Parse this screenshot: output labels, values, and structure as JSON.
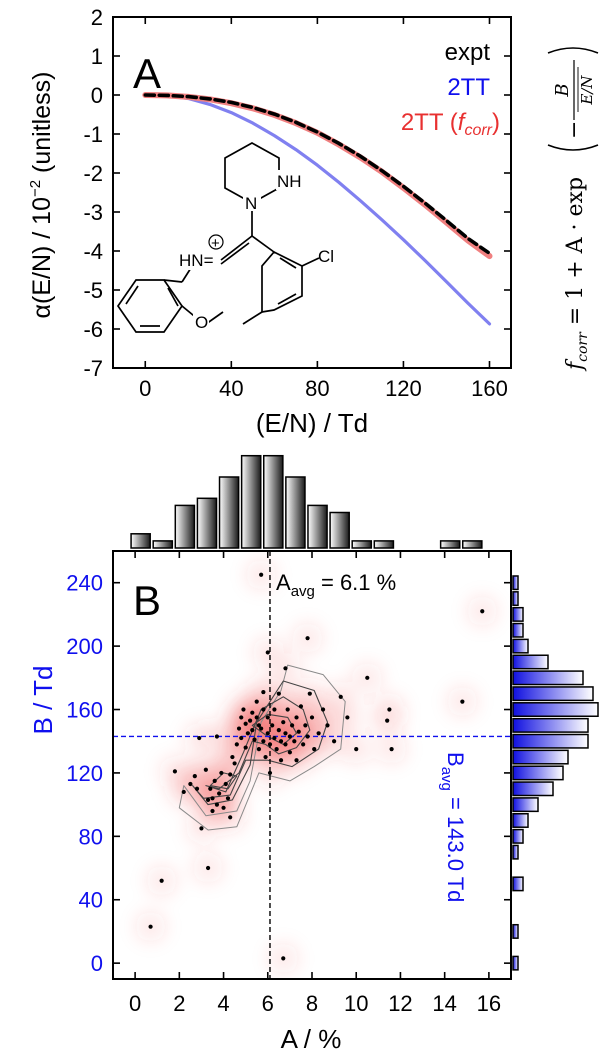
{
  "colors": {
    "expt": "#000000",
    "tt2": "#8080f0",
    "tt2corr": "#f08080",
    "blue_text": "#1010ee",
    "density": "#f03c3c"
  },
  "panelA": {
    "letter": "A",
    "xlabel": "(E/N) / Td",
    "ylabel": "α(E/N) / 10",
    "ylabel_exp": "−2",
    "ylabel_tail": " (unitless)",
    "legend": {
      "expt": "expt",
      "tt2": "2TT",
      "tt2corr_prefix": "2TT (",
      "tt2corr_f": "f",
      "tt2corr_sub": "corr",
      "tt2corr_suffix": ")"
    },
    "formula": {
      "lhs_f": "f",
      "lhs_sub": "corr",
      "rhs": " = 1 + A · exp",
      "numerator": "B",
      "denominator": "E/N",
      "minus": "−"
    },
    "molecule_labels": {
      "nh_top": "NH",
      "hn": "HN",
      "charge": "+",
      "cl": "Cl",
      "o": "O"
    }
  },
  "panelB": {
    "letter": "B",
    "xlabel": "A / %",
    "ylabel": "B / Td",
    "a_avg_prefix": "A",
    "a_avg_sub": "avg",
    "a_avg_value": " = 6.1 %",
    "b_avg_prefix": "B",
    "b_avg_sub": "avg",
    "b_avg_value": " = 143.0 Td"
  },
  "chart_data": [
    {
      "type": "line",
      "panel": "A",
      "xlim": [
        -15,
        170
      ],
      "ylim": [
        -7,
        2
      ],
      "xticks": [
        0,
        40,
        80,
        120,
        160
      ],
      "yticks": [
        2,
        1,
        0,
        -1,
        -2,
        -3,
        -4,
        -5,
        -6,
        -7
      ],
      "x": [
        0,
        10,
        20,
        30,
        40,
        50,
        60,
        70,
        80,
        90,
        100,
        110,
        120,
        130,
        140,
        150,
        160
      ],
      "series": [
        {
          "name": "expt",
          "style": "dashed",
          "values": [
            0,
            -0.01,
            -0.04,
            -0.1,
            -0.19,
            -0.32,
            -0.49,
            -0.7,
            -0.95,
            -1.24,
            -1.57,
            -1.94,
            -2.34,
            -2.77,
            -3.22,
            -3.68,
            -4.06
          ]
        },
        {
          "name": "2TT",
          "style": "solid",
          "values": [
            0,
            -0.02,
            -0.09,
            -0.24,
            -0.45,
            -0.72,
            -1.04,
            -1.4,
            -1.8,
            -2.24,
            -2.71,
            -3.2,
            -3.71,
            -4.24,
            -4.79,
            -5.34,
            -5.87
          ]
        },
        {
          "name": "2TT (fcorr)",
          "style": "solid",
          "values": [
            0,
            -0.01,
            -0.05,
            -0.11,
            -0.21,
            -0.34,
            -0.51,
            -0.72,
            -0.97,
            -1.27,
            -1.6,
            -1.97,
            -2.38,
            -2.81,
            -3.27,
            -3.73,
            -4.13
          ]
        }
      ]
    },
    {
      "type": "scatter",
      "panel": "B",
      "xlim": [
        -1,
        17
      ],
      "ylim": [
        -10,
        260
      ],
      "xticks": [
        0,
        2,
        4,
        6,
        8,
        10,
        12,
        14,
        16
      ],
      "yticks": [
        0,
        40,
        80,
        120,
        160,
        200,
        240
      ],
      "a_avg": 6.1,
      "b_avg": 143.0,
      "points": [
        [
          0.7,
          23
        ],
        [
          1.2,
          52
        ],
        [
          1.8,
          121
        ],
        [
          2.2,
          108
        ],
        [
          2.5,
          113
        ],
        [
          2.7,
          118
        ],
        [
          2.9,
          142
        ],
        [
          3.0,
          85
        ],
        [
          3.2,
          122
        ],
        [
          3.3,
          103
        ],
        [
          3.4,
          110
        ],
        [
          3.5,
          104
        ],
        [
          3.5,
          96
        ],
        [
          3.6,
          115
        ],
        [
          3.7,
          100
        ],
        [
          3.8,
          107
        ],
        [
          3.9,
          120
        ],
        [
          4.0,
          98
        ],
        [
          4.1,
          113
        ],
        [
          4.2,
          104
        ],
        [
          4.3,
          119
        ],
        [
          4.4,
          130
        ],
        [
          4.5,
          126
        ],
        [
          4.6,
          138
        ],
        [
          4.7,
          148
        ],
        [
          4.8,
          155
        ],
        [
          4.8,
          142
        ],
        [
          4.9,
          160
        ],
        [
          5.0,
          151
        ],
        [
          5.0,
          136
        ],
        [
          5.1,
          145
        ],
        [
          5.2,
          153
        ],
        [
          5.3,
          158
        ],
        [
          5.3,
          147
        ],
        [
          5.4,
          141
        ],
        [
          5.5,
          165
        ],
        [
          5.5,
          155
        ],
        [
          5.6,
          150
        ],
        [
          5.6,
          135
        ],
        [
          5.7,
          148
        ],
        [
          5.8,
          140
        ],
        [
          5.8,
          160
        ],
        [
          5.9,
          130
        ],
        [
          6.0,
          145
        ],
        [
          6.0,
          155
        ],
        [
          6.1,
          138
        ],
        [
          6.1,
          120
        ],
        [
          6.2,
          150
        ],
        [
          6.3,
          142
        ],
        [
          6.3,
          160
        ],
        [
          6.4,
          135
        ],
        [
          6.5,
          147
        ],
        [
          6.5,
          170
        ],
        [
          6.6,
          140
        ],
        [
          6.6,
          128
        ],
        [
          6.7,
          152
        ],
        [
          6.8,
          145
        ],
        [
          6.8,
          138
        ],
        [
          6.9,
          160
        ],
        [
          7.0,
          143
        ],
        [
          7.0,
          133
        ],
        [
          7.1,
          150
        ],
        [
          7.2,
          140
        ],
        [
          7.3,
          155
        ],
        [
          7.3,
          128
        ],
        [
          7.4,
          146
        ],
        [
          7.5,
          162
        ],
        [
          7.6,
          138
        ],
        [
          7.7,
          150
        ],
        [
          7.8,
          143
        ],
        [
          7.9,
          170
        ],
        [
          8.0,
          155
        ],
        [
          8.1,
          135
        ],
        [
          8.3,
          145
        ],
        [
          8.5,
          160
        ],
        [
          8.7,
          150
        ],
        [
          9.0,
          140
        ],
        [
          9.3,
          168
        ],
        [
          9.6,
          155
        ],
        [
          10.0,
          135
        ],
        [
          10.5,
          180
        ],
        [
          11.4,
          153
        ],
        [
          11.5,
          160
        ],
        [
          11.6,
          135
        ],
        [
          14.8,
          165
        ],
        [
          15.7,
          222
        ],
        [
          6.7,
          3
        ],
        [
          3.3,
          60
        ],
        [
          6.0,
          196
        ],
        [
          5.7,
          245
        ],
        [
          5.8,
          171
        ],
        [
          6.8,
          186
        ],
        [
          7.8,
          205
        ],
        [
          2.8,
          110
        ],
        [
          3.7,
          143
        ],
        [
          4.3,
          92
        ]
      ],
      "top_histogram": {
        "bin_centers": [
          0.25,
          1.25,
          2.25,
          3.25,
          4.25,
          5.25,
          6.25,
          7.25,
          8.25,
          9.25,
          10.25,
          11.25,
          14.25,
          15.25
        ],
        "counts": [
          2,
          1,
          6,
          7,
          10,
          13,
          13,
          10,
          6,
          5,
          1,
          1,
          1,
          1
        ]
      },
      "right_histogram": {
        "bin_centers": [
          0,
          10,
          20,
          30,
          40,
          50,
          60,
          70,
          80,
          90,
          100,
          110,
          120,
          130,
          140,
          150,
          160,
          170,
          180,
          190,
          200,
          210,
          220,
          230,
          240
        ],
        "counts": [
          1,
          0,
          1,
          0,
          0,
          2,
          0,
          1,
          2,
          3,
          5,
          8,
          10,
          11,
          15,
          15,
          17,
          16,
          14,
          7,
          3,
          2,
          2,
          1,
          1
        ]
      }
    }
  ]
}
